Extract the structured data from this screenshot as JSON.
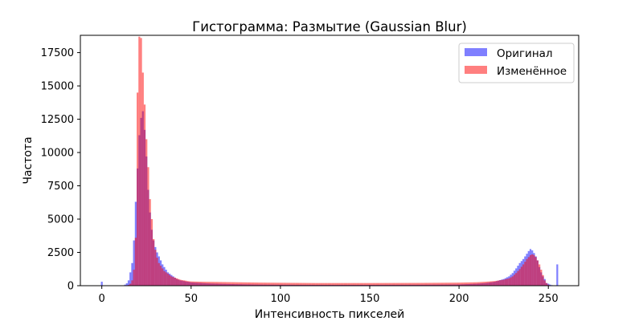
{
  "chart_data": {
    "type": "bar",
    "subtype": "overlaid-histogram",
    "title": "Гистограмма: Размытие (Gaussian Blur)",
    "xlabel": "Интенсивность пикселей",
    "ylabel": "Частота",
    "xlim": [
      -12,
      267
    ],
    "ylim": [
      0,
      18800
    ],
    "xticks": [
      0,
      50,
      100,
      150,
      200,
      250
    ],
    "yticks": [
      0,
      2500,
      5000,
      7500,
      10000,
      12500,
      15000,
      17500
    ],
    "grid": false,
    "legend_position": "top-right",
    "bin_width": 1,
    "series": [
      {
        "name": "Оригинал",
        "color": "#0000ff",
        "opacity": 0.5,
        "bins": [
          0,
          1,
          2,
          3,
          4,
          5,
          6,
          7,
          8,
          9,
          10,
          11,
          12,
          13,
          14,
          15,
          16,
          17,
          18,
          19,
          20,
          21,
          22,
          23,
          24,
          25,
          26,
          27,
          28,
          29,
          30,
          31,
          32,
          33,
          34,
          35,
          36,
          37,
          38,
          39,
          40,
          41,
          42,
          43,
          44,
          45,
          46,
          47,
          48,
          49,
          50,
          55,
          60,
          70,
          80,
          90,
          100,
          120,
          150,
          180,
          200,
          210,
          215,
          220,
          225,
          228,
          230,
          232,
          234,
          236,
          237,
          238,
          239,
          240,
          241,
          242,
          243,
          244,
          245,
          246,
          247,
          248,
          249,
          250,
          251,
          252,
          253,
          254,
          255
        ],
        "values": [
          300,
          0,
          0,
          0,
          0,
          0,
          0,
          0,
          0,
          0,
          0,
          0,
          30,
          80,
          180,
          400,
          1000,
          1700,
          3400,
          6300,
          8800,
          11300,
          12600,
          13100,
          11700,
          9700,
          7200,
          5500,
          4200,
          3400,
          2900,
          2500,
          2200,
          1900,
          1600,
          1400,
          1200,
          1000,
          900,
          800,
          700,
          600,
          500,
          450,
          400,
          380,
          350,
          320,
          300,
          280,
          250,
          210,
          170,
          130,
          100,
          80,
          70,
          60,
          60,
          70,
          90,
          150,
          200,
          300,
          500,
          700,
          950,
          1300,
          1700,
          2000,
          2200,
          2400,
          2600,
          2750,
          2650,
          2450,
          2200,
          1900,
          1400,
          1000,
          700,
          500,
          200,
          150,
          80,
          40,
          20,
          10,
          1600
        ]
      },
      {
        "name": "Изменённое",
        "color": "#ff0000",
        "opacity": 0.5,
        "bins": [
          14,
          15,
          16,
          17,
          18,
          19,
          20,
          21,
          22,
          23,
          24,
          25,
          26,
          27,
          28,
          29,
          30,
          31,
          32,
          33,
          34,
          35,
          36,
          37,
          38,
          39,
          40,
          41,
          42,
          43,
          44,
          45,
          46,
          47,
          48,
          49,
          50,
          55,
          60,
          70,
          80,
          90,
          100,
          120,
          150,
          180,
          200,
          210,
          215,
          220,
          225,
          228,
          230,
          232,
          234,
          236,
          237,
          238,
          239,
          240,
          241,
          242,
          243,
          244,
          245,
          246,
          247,
          248,
          249,
          250
        ],
        "values": [
          20,
          60,
          150,
          400,
          1200,
          3600,
          14500,
          18700,
          18600,
          16000,
          13600,
          11000,
          8900,
          6500,
          5000,
          3500,
          2700,
          2100,
          1700,
          1500,
          1300,
          1100,
          1000,
          900,
          800,
          700,
          650,
          600,
          550,
          500,
          450,
          420,
          400,
          380,
          350,
          330,
          320,
          300,
          290,
          270,
          250,
          230,
          220,
          200,
          200,
          210,
          230,
          260,
          300,
          350,
          450,
          550,
          700,
          950,
          1250,
          1600,
          1800,
          2000,
          2150,
          2300,
          2350,
          2300,
          2150,
          1900,
          1600,
          1200,
          800,
          400,
          200,
          80
        ]
      }
    ]
  }
}
